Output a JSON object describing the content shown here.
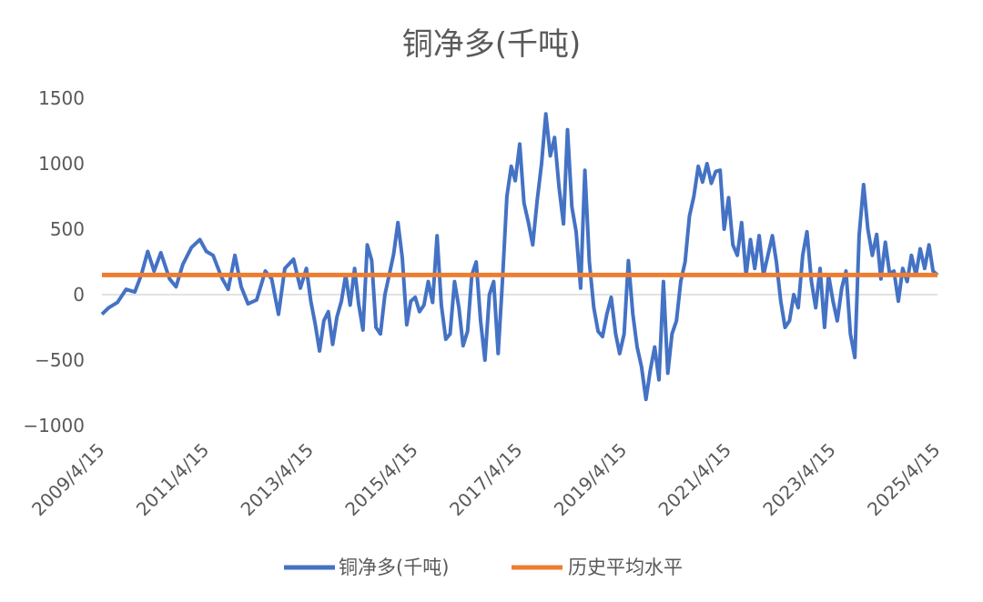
{
  "chart_data": {
    "type": "line",
    "title": "铜净多(千吨)",
    "xlabel": "",
    "ylabel": "",
    "x_ticks": [
      "2009/4/15",
      "2011/4/15",
      "2013/4/15",
      "2015/4/15",
      "2017/4/15",
      "2019/4/15",
      "2021/4/15",
      "2023/4/15",
      "2025/4/15"
    ],
    "y_ticks": [
      "1500",
      "1000",
      "500",
      "0",
      "−500",
      "−1000"
    ],
    "ylim": [
      -1000,
      1500
    ],
    "x_range": [
      "2009-04-15",
      "2025-04-15"
    ],
    "grid": false,
    "legend_position": "bottom",
    "series": [
      {
        "name": "铜净多(千吨)",
        "color": "#4472C4",
        "points": [
          [
            "2009-04-15",
            -150
          ],
          [
            "2009-06-01",
            -100
          ],
          [
            "2009-08-01",
            -60
          ],
          [
            "2009-10-01",
            40
          ],
          [
            "2009-12-01",
            20
          ],
          [
            "2010-01-15",
            150
          ],
          [
            "2010-03-01",
            330
          ],
          [
            "2010-04-15",
            180
          ],
          [
            "2010-06-01",
            320
          ],
          [
            "2010-08-01",
            120
          ],
          [
            "2010-09-15",
            60
          ],
          [
            "2010-11-01",
            230
          ],
          [
            "2011-01-01",
            360
          ],
          [
            "2011-03-01",
            420
          ],
          [
            "2011-04-15",
            330
          ],
          [
            "2011-06-01",
            300
          ],
          [
            "2011-08-01",
            130
          ],
          [
            "2011-09-15",
            40
          ],
          [
            "2011-11-01",
            300
          ],
          [
            "2011-12-15",
            60
          ],
          [
            "2012-02-01",
            -70
          ],
          [
            "2012-04-01",
            -40
          ],
          [
            "2012-06-01",
            180
          ],
          [
            "2012-07-15",
            120
          ],
          [
            "2012-09-01",
            -150
          ],
          [
            "2012-10-15",
            200
          ],
          [
            "2012-12-15",
            270
          ],
          [
            "2013-02-01",
            50
          ],
          [
            "2013-03-15",
            200
          ],
          [
            "2013-04-15",
            -50
          ],
          [
            "2013-05-15",
            -220
          ],
          [
            "2013-06-15",
            -430
          ],
          [
            "2013-07-15",
            -200
          ],
          [
            "2013-08-15",
            -130
          ],
          [
            "2013-09-15",
            -380
          ],
          [
            "2013-10-15",
            -170
          ],
          [
            "2013-11-15",
            -50
          ],
          [
            "2013-12-15",
            150
          ],
          [
            "2014-01-15",
            -80
          ],
          [
            "2014-02-15",
            200
          ],
          [
            "2014-03-15",
            -70
          ],
          [
            "2014-04-15",
            -270
          ],
          [
            "2014-05-15",
            380
          ],
          [
            "2014-06-15",
            260
          ],
          [
            "2014-07-15",
            -250
          ],
          [
            "2014-08-15",
            -300
          ],
          [
            "2014-09-15",
            0
          ],
          [
            "2014-10-15",
            150
          ],
          [
            "2014-11-15",
            310
          ],
          [
            "2014-12-15",
            550
          ],
          [
            "2015-01-15",
            280
          ],
          [
            "2015-02-15",
            -230
          ],
          [
            "2015-03-15",
            -50
          ],
          [
            "2015-04-15",
            -20
          ],
          [
            "2015-05-15",
            -130
          ],
          [
            "2015-06-15",
            -80
          ],
          [
            "2015-07-15",
            100
          ],
          [
            "2015-08-15",
            -60
          ],
          [
            "2015-09-15",
            450
          ],
          [
            "2015-10-15",
            -80
          ],
          [
            "2015-11-15",
            -340
          ],
          [
            "2015-12-15",
            -300
          ],
          [
            "2016-01-15",
            100
          ],
          [
            "2016-02-15",
            -100
          ],
          [
            "2016-03-15",
            -390
          ],
          [
            "2016-04-15",
            -280
          ],
          [
            "2016-05-15",
            150
          ],
          [
            "2016-06-15",
            250
          ],
          [
            "2016-07-15",
            -200
          ],
          [
            "2016-08-15",
            -500
          ],
          [
            "2016-09-15",
            0
          ],
          [
            "2016-10-15",
            100
          ],
          [
            "2016-11-15",
            -450
          ],
          [
            "2016-12-15",
            100
          ],
          [
            "2017-01-15",
            750
          ],
          [
            "2017-02-15",
            980
          ],
          [
            "2017-03-15",
            870
          ],
          [
            "2017-04-15",
            1150
          ],
          [
            "2017-05-15",
            700
          ],
          [
            "2017-06-15",
            550
          ],
          [
            "2017-07-15",
            380
          ],
          [
            "2017-08-15",
            720
          ],
          [
            "2017-09-15",
            1000
          ],
          [
            "2017-10-15",
            1380
          ],
          [
            "2017-11-15",
            1060
          ],
          [
            "2017-12-15",
            1200
          ],
          [
            "2018-01-15",
            820
          ],
          [
            "2018-02-15",
            540
          ],
          [
            "2018-03-15",
            1260
          ],
          [
            "2018-04-15",
            670
          ],
          [
            "2018-05-15",
            480
          ],
          [
            "2018-06-15",
            50
          ],
          [
            "2018-07-15",
            950
          ],
          [
            "2018-08-15",
            250
          ],
          [
            "2018-09-15",
            -100
          ],
          [
            "2018-10-15",
            -280
          ],
          [
            "2018-11-15",
            -320
          ],
          [
            "2018-12-15",
            -150
          ],
          [
            "2019-01-15",
            -20
          ],
          [
            "2019-02-15",
            -300
          ],
          [
            "2019-03-15",
            -450
          ],
          [
            "2019-04-15",
            -300
          ],
          [
            "2019-05-15",
            260
          ],
          [
            "2019-06-15",
            -150
          ],
          [
            "2019-07-15",
            -400
          ],
          [
            "2019-08-15",
            -550
          ],
          [
            "2019-09-15",
            -800
          ],
          [
            "2019-10-15",
            -580
          ],
          [
            "2019-11-15",
            -400
          ],
          [
            "2019-12-15",
            -650
          ],
          [
            "2020-01-15",
            100
          ],
          [
            "2020-02-15",
            -600
          ],
          [
            "2020-03-15",
            -300
          ],
          [
            "2020-04-15",
            -200
          ],
          [
            "2020-05-15",
            100
          ],
          [
            "2020-06-15",
            250
          ],
          [
            "2020-07-15",
            600
          ],
          [
            "2020-08-15",
            750
          ],
          [
            "2020-09-15",
            980
          ],
          [
            "2020-10-15",
            860
          ],
          [
            "2020-11-15",
            1000
          ],
          [
            "2020-12-15",
            850
          ],
          [
            "2021-01-15",
            940
          ],
          [
            "2021-02-15",
            950
          ],
          [
            "2021-03-15",
            500
          ],
          [
            "2021-04-15",
            740
          ],
          [
            "2021-05-15",
            380
          ],
          [
            "2021-06-15",
            300
          ],
          [
            "2021-07-15",
            550
          ],
          [
            "2021-08-15",
            150
          ],
          [
            "2021-09-15",
            420
          ],
          [
            "2021-10-15",
            200
          ],
          [
            "2021-11-15",
            450
          ],
          [
            "2021-12-15",
            150
          ],
          [
            "2022-01-15",
            300
          ],
          [
            "2022-02-15",
            450
          ],
          [
            "2022-03-15",
            250
          ],
          [
            "2022-04-15",
            -50
          ],
          [
            "2022-05-15",
            -250
          ],
          [
            "2022-06-15",
            -200
          ],
          [
            "2022-07-15",
            0
          ],
          [
            "2022-08-15",
            -100
          ],
          [
            "2022-09-15",
            300
          ],
          [
            "2022-10-15",
            480
          ],
          [
            "2022-11-15",
            100
          ],
          [
            "2022-12-15",
            -100
          ],
          [
            "2023-01-15",
            200
          ],
          [
            "2023-02-15",
            -250
          ],
          [
            "2023-03-15",
            150
          ],
          [
            "2023-04-15",
            -50
          ],
          [
            "2023-05-15",
            -200
          ],
          [
            "2023-06-15",
            50
          ],
          [
            "2023-07-15",
            180
          ],
          [
            "2023-08-15",
            -300
          ],
          [
            "2023-09-15",
            -480
          ],
          [
            "2023-10-15",
            450
          ],
          [
            "2023-11-15",
            840
          ],
          [
            "2023-12-15",
            500
          ],
          [
            "2024-01-15",
            300
          ],
          [
            "2024-02-15",
            460
          ],
          [
            "2024-03-15",
            120
          ],
          [
            "2024-04-15",
            400
          ],
          [
            "2024-05-15",
            160
          ],
          [
            "2024-06-15",
            180
          ],
          [
            "2024-07-15",
            -50
          ],
          [
            "2024-08-15",
            200
          ],
          [
            "2024-09-15",
            100
          ],
          [
            "2024-10-15",
            300
          ],
          [
            "2024-11-15",
            150
          ],
          [
            "2024-12-15",
            350
          ],
          [
            "2025-01-15",
            200
          ],
          [
            "2025-02-15",
            380
          ],
          [
            "2025-03-15",
            180
          ],
          [
            "2025-04-15",
            150
          ]
        ]
      },
      {
        "name": "历史平均水平",
        "color": "#ED7D31",
        "points": [
          [
            "2009-04-15",
            150
          ],
          [
            "2025-04-15",
            150
          ]
        ]
      }
    ]
  }
}
